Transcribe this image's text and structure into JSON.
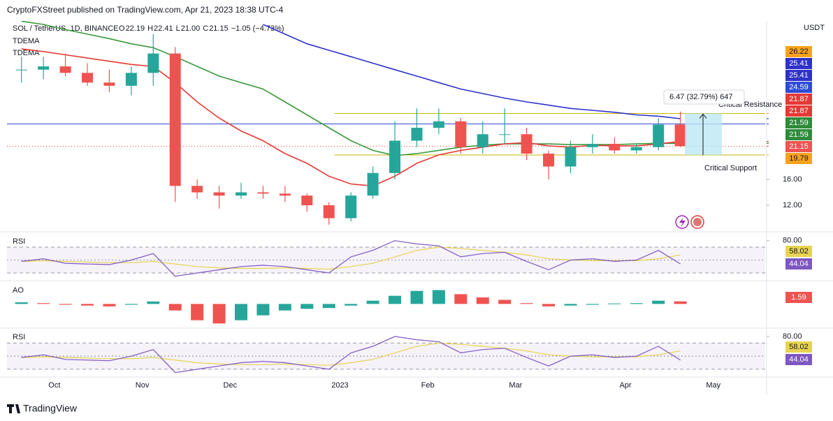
{
  "header": {
    "text": "CryptoFXStreet published on TradingView.com, Apr 21, 2023 18:38 UTC-4"
  },
  "legend": {
    "symbol": "SOL / TetherUS, 1D, BINANCE",
    "ohlc": [
      {
        "label": "O",
        "value": "22.19"
      },
      {
        "label": "H",
        "value": "22.41"
      },
      {
        "label": "L",
        "value": "21.00"
      },
      {
        "label": "C",
        "value": "21.15"
      }
    ],
    "change": "−1.05 (−4.73%)",
    "indicators": [
      "TDEMA",
      "TDEMA"
    ]
  },
  "currency": "USDT",
  "footer": {
    "brand": "TradingView"
  },
  "chart_data": {
    "type": "candlestick",
    "categories": [
      null,
      null,
      "Oct",
      null,
      null,
      null,
      "Nov",
      null,
      null,
      null,
      "Dec",
      null,
      null,
      null,
      null,
      "2023",
      null,
      null,
      null,
      "Feb",
      null,
      null,
      null,
      "Mar",
      null,
      null,
      null,
      null,
      "Apr",
      null,
      null,
      null,
      "May",
      null
    ],
    "open": [
      33,
      33,
      33.5,
      32.5,
      31,
      30.5,
      32.5,
      35.5,
      15,
      14,
      13.5,
      14,
      13.8,
      13.5,
      12,
      10,
      13.5,
      17,
      22,
      24,
      25,
      21,
      23,
      23,
      20,
      18,
      21,
      21.5,
      20.5,
      21,
      24.5,
      null,
      null,
      null
    ],
    "high": [
      35,
      35,
      35.5,
      34,
      33,
      33.5,
      38.5,
      36.5,
      16,
      15,
      15.5,
      15,
      15,
      13.8,
      12.5,
      14,
      18,
      25,
      27,
      27,
      25.5,
      25,
      27,
      24,
      20.5,
      22,
      23,
      22.5,
      21.5,
      25.5,
      26.5,
      null,
      null,
      null
    ],
    "low": [
      31,
      31.5,
      32,
      30.5,
      29.5,
      29,
      30.5,
      12.5,
      13,
      11.5,
      13,
      13,
      12.5,
      11,
      9,
      9.5,
      13,
      16,
      21,
      23,
      20,
      20,
      21.5,
      19,
      16,
      17,
      20,
      20,
      20,
      20.5,
      21,
      null,
      null,
      null
    ],
    "close": [
      33,
      33.5,
      32.5,
      31,
      30.5,
      32.5,
      35.5,
      15,
      14,
      13.5,
      14,
      13.8,
      13.5,
      12,
      10,
      13.5,
      17,
      22,
      24,
      25,
      21,
      23,
      23,
      20,
      18,
      21,
      21.5,
      20.5,
      21,
      24.5,
      21.15,
      null,
      null,
      null
    ],
    "up_color": "#26a69a",
    "down_color": "#ef5350",
    "series": [
      {
        "color": "#2e31c9",
        "values": [
          null,
          null,
          null,
          null,
          null,
          null,
          null,
          null,
          null,
          null,
          null,
          40,
          38.5,
          37,
          36,
          35,
          34,
          33,
          32,
          31,
          30,
          29.3,
          28.6,
          28,
          27.5,
          27,
          26.7,
          26.4,
          26,
          25.8,
          25.41,
          null,
          null,
          null
        ]
      },
      {
        "color": "#3a9a3a",
        "values": [
          40.5,
          40,
          39.2,
          38.5,
          37.8,
          37,
          36.4,
          35,
          33.5,
          32,
          31,
          30,
          28,
          26,
          24,
          22,
          20.5,
          19.7,
          20,
          20.5,
          21,
          21.3,
          21.5,
          21.5,
          21.5,
          21.4,
          21.4,
          21.4,
          21.5,
          21.6,
          21.59,
          null,
          null,
          null
        ]
      },
      {
        "color": "#e53935",
        "values": [
          36.2,
          35.8,
          35.3,
          34.8,
          34.3,
          33.8,
          33.5,
          31,
          28,
          25.5,
          23.5,
          22,
          20,
          18.5,
          16.5,
          15.3,
          15,
          16.5,
          18.5,
          19.8,
          20.5,
          21,
          21.5,
          21.7,
          21.2,
          21,
          21.3,
          21.2,
          21.2,
          21.5,
          21.87,
          null,
          null,
          null
        ]
      }
    ],
    "ylim": [
      8.11,
      40.54
    ],
    "yticks": [
      {
        "value": 12,
        "label": "12.00"
      },
      {
        "value": 16,
        "label": "16.00"
      }
    ],
    "levels": [
      {
        "value": 26.22,
        "color": "#c9b500",
        "style": "solid"
      },
      {
        "value": 19.79,
        "color": "#c9b500",
        "style": "solid"
      },
      {
        "value": 24.59,
        "color": "#2e4bd6",
        "style": "solid"
      },
      {
        "value": 21.15,
        "color": "#e53935",
        "style": "dotted"
      }
    ],
    "price_badges": [
      {
        "value": 26.22,
        "color": "#f7a21b"
      },
      {
        "value": 25.41,
        "color": "#2e31c9"
      },
      {
        "value": 25.41,
        "color": "#2e31c9"
      },
      {
        "value": 24.59,
        "color": "#2e4bd6"
      },
      {
        "value": 21.87,
        "color": "#e53935"
      },
      {
        "value": 21.87,
        "color": "#e53935"
      },
      {
        "value": 21.59,
        "color": "#2e8b3a"
      },
      {
        "value": 21.59,
        "color": "#2e8b3a"
      },
      {
        "value": 21.15,
        "color": "#ef5350"
      },
      {
        "value": 19.79,
        "color": "#f7a21b"
      }
    ],
    "annotations": {
      "measure": "6.47 (32.79%) 647",
      "resistance": "Critical Resistance",
      "support": "Critical Support"
    }
  },
  "panels": [
    {
      "type": "rsi",
      "name": "RSI",
      "ylim": [
        20.3,
        90.5
      ],
      "yticks": [
        {
          "value": 80,
          "label": "80.00"
        }
      ],
      "levels": [
        70,
        50,
        30
      ],
      "values": [
        48,
        52,
        45,
        44,
        43,
        50,
        60,
        25,
        30,
        35,
        40,
        42,
        40,
        35,
        30,
        55,
        65,
        80,
        75,
        72,
        55,
        60,
        62,
        48,
        35,
        50,
        52,
        48,
        50,
        65,
        44.04,
        null,
        null,
        null
      ],
      "ma": [
        48,
        49,
        48,
        47,
        46,
        46,
        48,
        44,
        40,
        38,
        37,
        37,
        38,
        37,
        36,
        40,
        45,
        55,
        65,
        70,
        68,
        65,
        62,
        58,
        52,
        50,
        49,
        49,
        49,
        52,
        58.02,
        null,
        null,
        null
      ],
      "color": "#7e57c2",
      "ma_color": "#e8d44d"
    },
    {
      "type": "ao",
      "name": "AO",
      "ylim": [
        -14,
        13
      ],
      "values": [
        1,
        0.5,
        -0.5,
        -1,
        -1.5,
        -0.5,
        1.5,
        -4,
        -10,
        -12,
        -10,
        -7,
        -4,
        -3,
        -2.5,
        -1,
        2,
        5,
        8,
        8.5,
        6,
        4,
        2.5,
        0.5,
        -1.5,
        -1,
        -0.5,
        0.3,
        0.5,
        2,
        1.59,
        null,
        null,
        null
      ],
      "up_color": "#26a69a",
      "down_color": "#ef5350"
    },
    {
      "type": "rsi",
      "name": "RSI",
      "ylim": [
        20.3,
        90.5
      ],
      "yticks": [
        {
          "value": 80,
          "label": "80.00"
        }
      ],
      "levels": [
        70,
        50,
        30
      ],
      "values": [
        48,
        52,
        45,
        44,
        43,
        50,
        60,
        25,
        30,
        35,
        40,
        42,
        40,
        35,
        30,
        55,
        65,
        80,
        75,
        72,
        55,
        60,
        62,
        48,
        35,
        50,
        52,
        48,
        50,
        65,
        44.04,
        null,
        null,
        null
      ],
      "ma": [
        48,
        49,
        48,
        47,
        46,
        46,
        48,
        44,
        40,
        38,
        37,
        37,
        38,
        37,
        36,
        40,
        45,
        55,
        65,
        70,
        68,
        65,
        62,
        58,
        52,
        50,
        49,
        49,
        49,
        52,
        58.02,
        null,
        null,
        null
      ],
      "color": "#7e57c2",
      "ma_color": "#e8d44d"
    }
  ]
}
